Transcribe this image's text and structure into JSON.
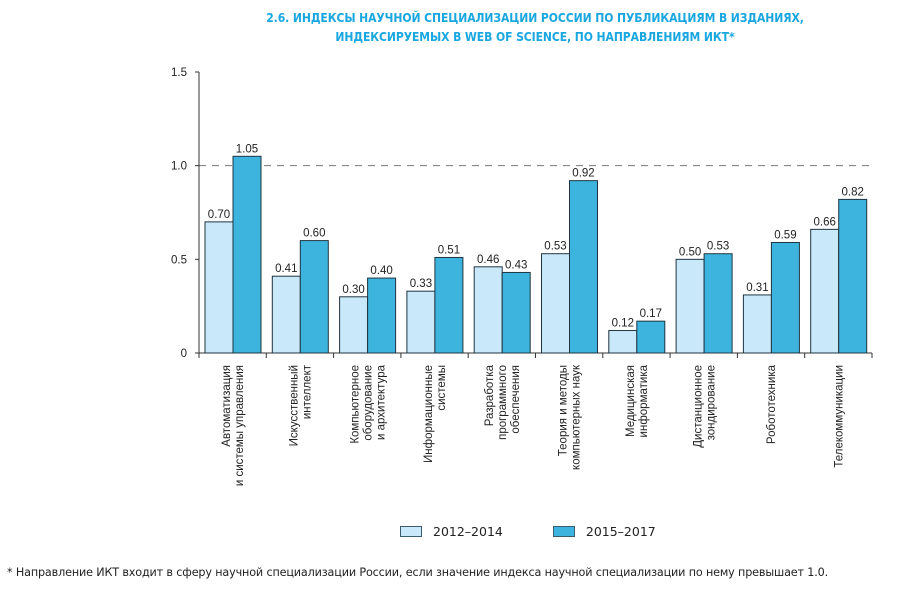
{
  "header": {
    "title_line1": "2.6. ИНДЕКСЫ НАУЧНОЙ СПЕЦИАЛИЗАЦИИ РОССИИ ПО ПУБЛИКАЦИЯМ В ИЗДАНИЯХ,",
    "title_line2": "ИНДЕКСИРУЕМЫХ В WEB OF SCIENCE, ПО НАПРАВЛЕНИЯМ ИКТ*"
  },
  "colors": {
    "title": "#1aa7e0",
    "series_2012_2014": "#c9e8f9",
    "series_2015_2017": "#3cb4de",
    "bar_stroke": "#1f3440",
    "reference_line": "#777777"
  },
  "chart_data": {
    "type": "bar",
    "title": "2.6. ИНДЕКСЫ НАУЧНОЙ СПЕЦИАЛИЗАЦИИ РОССИИ ПО ПУБЛИКАЦИЯМ В ИЗДАНИЯХ, ИНДЕКСИРУЕМЫХ В WEB OF SCIENCE, ПО НАПРАВЛЕНИЯМ ИКТ*",
    "xlabel": "",
    "ylabel": "",
    "ylim": [
      0,
      1.5
    ],
    "yticks": [
      0,
      0.5,
      1.0,
      1.5
    ],
    "ytick_labels": [
      "0",
      "0.5",
      "1.0",
      "1.5"
    ],
    "reference_line": {
      "y": 1.0,
      "style": "dashed"
    },
    "grid": false,
    "legend_position": "bottom",
    "categories": [
      [
        "Автоматизация",
        "и системы управления"
      ],
      [
        "Искусственный",
        "интеллект"
      ],
      [
        "Компьютерное",
        "оборудование",
        "и архитектура"
      ],
      [
        "Информационные",
        "системы"
      ],
      [
        "Разработка",
        "программного",
        "обеспечения"
      ],
      [
        "Теория и методы",
        "компьютерных наук"
      ],
      [
        "Медицинская",
        "информатика"
      ],
      [
        "Дистанционное",
        "зондирование"
      ],
      [
        "Робототехника"
      ],
      [
        "Телекоммуникации"
      ]
    ],
    "series": [
      {
        "name": "2012–2014",
        "values": [
          0.7,
          0.41,
          0.3,
          0.33,
          0.46,
          0.53,
          0.12,
          0.5,
          0.31,
          0.66
        ],
        "labels": [
          "0.70",
          "0.41",
          "0.30",
          "0.33",
          "0.46",
          "0.53",
          "0.12",
          "0.50",
          "0.31",
          "0.66"
        ]
      },
      {
        "name": "2015–2017",
        "values": [
          1.05,
          0.6,
          0.4,
          0.51,
          0.43,
          0.92,
          0.17,
          0.53,
          0.59,
          0.82
        ],
        "labels": [
          "1.05",
          "0.60",
          "0.40",
          "0.51",
          "0.43",
          "0.92",
          "0.17",
          "0.53",
          "0.59",
          "0.82"
        ]
      }
    ]
  },
  "legend": {
    "items": [
      "2012–2014",
      "2015–2017"
    ]
  },
  "footnote": "* Направление ИКТ входит в сферу научной специализации России, если значение индекса научной специализации по нему превышает 1.0."
}
